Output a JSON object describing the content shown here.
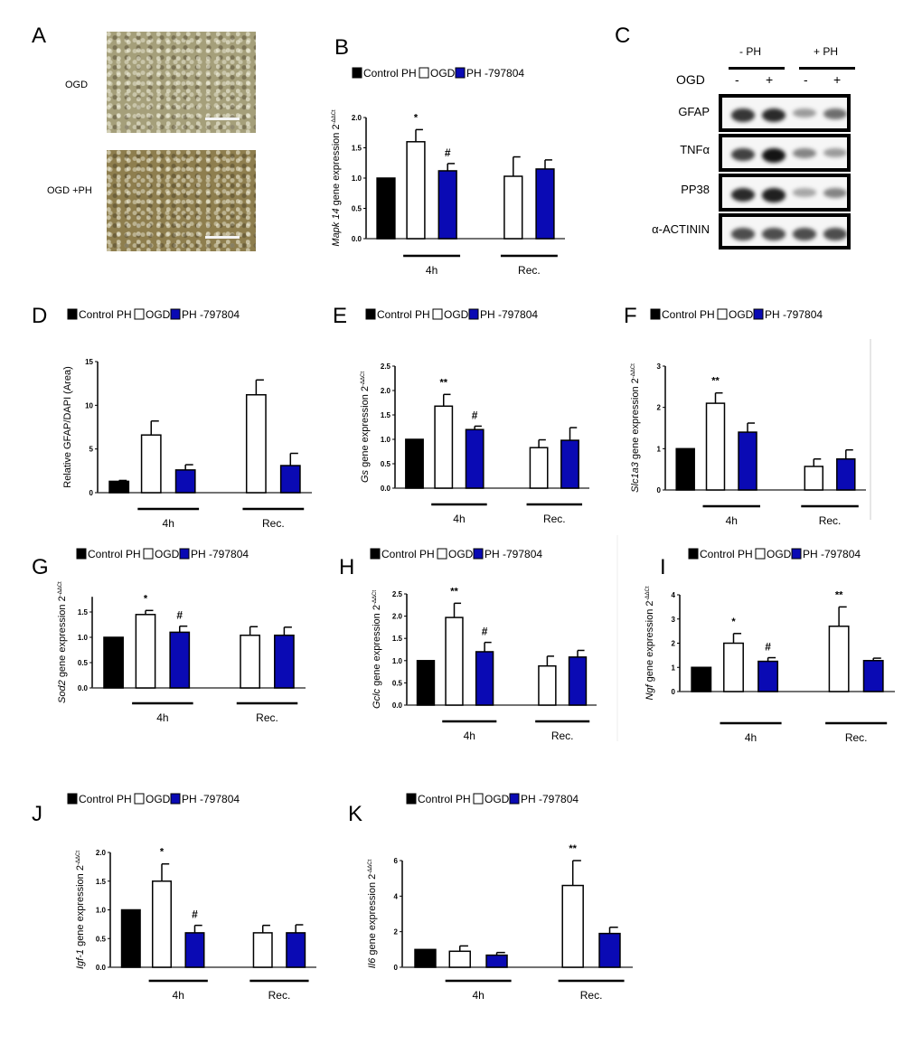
{
  "panel_a": {
    "letter": "A",
    "rows": [
      {
        "label": "OGD",
        "tone": "#a59f7a"
      },
      {
        "label": "OGD +PH",
        "tone": "#8e7e4e"
      }
    ]
  },
  "panel_c": {
    "letter": "C",
    "groups": [
      "- PH",
      "+ PH"
    ],
    "ogd_label": "OGD",
    "ogd_signs": [
      "-",
      "+",
      "-",
      "+"
    ],
    "blots": [
      {
        "label": "GFAP",
        "intensity": [
          0.85,
          0.9,
          0.4,
          0.6
        ]
      },
      {
        "label": "TNFα",
        "intensity": [
          0.8,
          1.0,
          0.5,
          0.4
        ]
      },
      {
        "label": "PP38",
        "intensity": [
          0.9,
          0.95,
          0.35,
          0.5
        ]
      },
      {
        "label": "α-ACTININ",
        "intensity": [
          0.75,
          0.75,
          0.75,
          0.75
        ]
      }
    ]
  },
  "legend": {
    "items": [
      {
        "name": "Control PH",
        "color": "#000000"
      },
      {
        "name": "OGD",
        "color": "#ffffff"
      },
      {
        "name": "PH -797804",
        "color": "#0a0ab4"
      }
    ]
  },
  "colors": {
    "control": "#000000",
    "ogd": "#ffffff",
    "ph": "#0a0ab4"
  },
  "chart_data": [
    {
      "panel": "B",
      "type": "bar",
      "ylabel_gene": "Mapk 14",
      "ylabel_rest": " gene expression 2",
      "ylabel_sup": "-ΔΔCt",
      "ylim": [
        0,
        2.0
      ],
      "yticks": [
        "0.0",
        "0.5",
        "1.0",
        "1.5",
        "2.0"
      ],
      "groups": [
        {
          "label": "",
          "bars": [
            {
              "series": "Control PH",
              "value": 1.0,
              "error": 0,
              "mark": ""
            }
          ]
        },
        {
          "label": "4h",
          "bars": [
            {
              "series": "OGD",
              "value": 1.6,
              "error": 0.2,
              "mark": "*"
            },
            {
              "series": "PH -797804",
              "value": 1.12,
              "error": 0.12,
              "mark": "#"
            }
          ]
        },
        {
          "label": "Rec.",
          "bars": [
            {
              "series": "OGD",
              "value": 1.03,
              "error": 0.32,
              "mark": ""
            },
            {
              "series": "PH -797804",
              "value": 1.15,
              "error": 0.15,
              "mark": ""
            }
          ]
        }
      ]
    },
    {
      "panel": "D",
      "type": "bar",
      "ylabel_gene": "",
      "ylabel_rest": "Relative GFAP/DAPI (Area)",
      "ylabel_sup": "",
      "ylim": [
        0,
        15
      ],
      "yticks": [
        "0",
        "5",
        "10",
        "15"
      ],
      "groups": [
        {
          "label": "",
          "bars": [
            {
              "series": "Control PH",
              "value": 1.3,
              "error": 0.1,
              "mark": ""
            }
          ]
        },
        {
          "label": "4h",
          "bars": [
            {
              "series": "OGD",
              "value": 6.6,
              "error": 1.6,
              "mark": ""
            },
            {
              "series": "PH -797804",
              "value": 2.6,
              "error": 0.6,
              "mark": ""
            }
          ]
        },
        {
          "label": "Rec.",
          "bars": [
            {
              "series": "OGD",
              "value": 11.2,
              "error": 1.7,
              "mark": ""
            },
            {
              "series": "PH -797804",
              "value": 3.1,
              "error": 1.4,
              "mark": ""
            }
          ]
        }
      ]
    },
    {
      "panel": "E",
      "type": "bar",
      "ylabel_gene": "Gs",
      "ylabel_rest": " gene expression 2",
      "ylabel_sup": "-ΔΔCt",
      "ylim": [
        0,
        2.5
      ],
      "yticks": [
        "0.0",
        "0.5",
        "1.0",
        "1.5",
        "2.0",
        "2.5"
      ],
      "groups": [
        {
          "label": "",
          "bars": [
            {
              "series": "Control PH",
              "value": 1.0,
              "error": 0,
              "mark": ""
            }
          ]
        },
        {
          "label": "4h",
          "bars": [
            {
              "series": "OGD",
              "value": 1.68,
              "error": 0.24,
              "mark": "**"
            },
            {
              "series": "PH -797804",
              "value": 1.2,
              "error": 0.07,
              "mark": "#"
            }
          ]
        },
        {
          "label": "Rec.",
          "bars": [
            {
              "series": "OGD",
              "value": 0.83,
              "error": 0.16,
              "mark": ""
            },
            {
              "series": "PH -797804",
              "value": 0.98,
              "error": 0.26,
              "mark": ""
            }
          ]
        }
      ]
    },
    {
      "panel": "F",
      "type": "bar",
      "ylabel_gene": "Slc1a3",
      "ylabel_rest": " gene expression 2",
      "ylabel_sup": "-ΔΔCt",
      "ylim": [
        0,
        3
      ],
      "yticks": [
        "0",
        "1",
        "2",
        "3"
      ],
      "groups": [
        {
          "label": "",
          "bars": [
            {
              "series": "Control PH",
              "value": 1.0,
              "error": 0,
              "mark": ""
            }
          ]
        },
        {
          "label": "4h",
          "bars": [
            {
              "series": "OGD",
              "value": 2.1,
              "error": 0.25,
              "mark": "**"
            },
            {
              "series": "PH -797804",
              "value": 1.4,
              "error": 0.22,
              "mark": ""
            }
          ]
        },
        {
          "label": "Rec.",
          "bars": [
            {
              "series": "OGD",
              "value": 0.57,
              "error": 0.18,
              "mark": ""
            },
            {
              "series": "PH -797804",
              "value": 0.75,
              "error": 0.22,
              "mark": ""
            }
          ]
        }
      ]
    },
    {
      "panel": "G",
      "type": "bar",
      "ylabel_gene": "Sod2",
      "ylabel_rest": " gene expression 2",
      "ylabel_sup": "-ΔΔCt",
      "ylim": [
        0,
        1.8
      ],
      "yticks": [
        "0.0",
        "0.5",
        "1.0",
        "1.5"
      ],
      "groups": [
        {
          "label": "",
          "bars": [
            {
              "series": "Control PH",
              "value": 1.0,
              "error": 0,
              "mark": ""
            }
          ]
        },
        {
          "label": "4h",
          "bars": [
            {
              "series": "OGD",
              "value": 1.45,
              "error": 0.08,
              "mark": "*"
            },
            {
              "series": "PH -797804",
              "value": 1.1,
              "error": 0.12,
              "mark": "#"
            }
          ]
        },
        {
          "label": "Rec.",
          "bars": [
            {
              "series": "OGD",
              "value": 1.04,
              "error": 0.17,
              "mark": ""
            },
            {
              "series": "PH -797804",
              "value": 1.04,
              "error": 0.16,
              "mark": ""
            }
          ]
        }
      ]
    },
    {
      "panel": "H",
      "type": "bar",
      "ylabel_gene": "Gclc",
      "ylabel_rest": " gene expression 2",
      "ylabel_sup": "-ΔΔCt",
      "ylim": [
        0,
        2.5
      ],
      "yticks": [
        "0.0",
        "0.5",
        "1.0",
        "1.5",
        "2.0",
        "2.5"
      ],
      "groups": [
        {
          "label": "",
          "bars": [
            {
              "series": "Control PH",
              "value": 1.0,
              "error": 0,
              "mark": ""
            }
          ]
        },
        {
          "label": "4h",
          "bars": [
            {
              "series": "OGD",
              "value": 1.97,
              "error": 0.32,
              "mark": "**"
            },
            {
              "series": "PH -797804",
              "value": 1.2,
              "error": 0.21,
              "mark": "#"
            }
          ]
        },
        {
          "label": "Rec.",
          "bars": [
            {
              "series": "OGD",
              "value": 0.88,
              "error": 0.22,
              "mark": ""
            },
            {
              "series": "PH -797804",
              "value": 1.08,
              "error": 0.15,
              "mark": ""
            }
          ]
        }
      ]
    },
    {
      "panel": "I",
      "type": "bar",
      "ylabel_gene": "Ngf",
      "ylabel_rest": " gene expression 2",
      "ylabel_sup": "-ΔΔCt",
      "ylim": [
        0,
        4
      ],
      "yticks": [
        "0",
        "1",
        "2",
        "3",
        "4"
      ],
      "groups": [
        {
          "label": "",
          "bars": [
            {
              "series": "Control PH",
              "value": 1.0,
              "error": 0,
              "mark": ""
            }
          ]
        },
        {
          "label": "4h",
          "bars": [
            {
              "series": "OGD",
              "value": 2.0,
              "error": 0.4,
              "mark": "*"
            },
            {
              "series": "PH -797804",
              "value": 1.25,
              "error": 0.15,
              "mark": "#"
            }
          ]
        },
        {
          "label": "Rec.",
          "bars": [
            {
              "series": "OGD",
              "value": 2.7,
              "error": 0.8,
              "mark": "**"
            },
            {
              "series": "PH -797804",
              "value": 1.28,
              "error": 0.1,
              "mark": ""
            }
          ]
        }
      ]
    },
    {
      "panel": "J",
      "type": "bar",
      "ylabel_gene": "Igf-1",
      "ylabel_rest": " gene expression 2",
      "ylabel_sup": "-ΔΔCt",
      "ylim": [
        0,
        2.0
      ],
      "yticks": [
        "0.0",
        "0.5",
        "1.0",
        "1.5",
        "2.0"
      ],
      "groups": [
        {
          "label": "",
          "bars": [
            {
              "series": "Control PH",
              "value": 1.0,
              "error": 0,
              "mark": ""
            }
          ]
        },
        {
          "label": "4h",
          "bars": [
            {
              "series": "OGD",
              "value": 1.5,
              "error": 0.3,
              "mark": "*"
            },
            {
              "series": "PH -797804",
              "value": 0.6,
              "error": 0.13,
              "mark": "#"
            }
          ]
        },
        {
          "label": "Rec.",
          "bars": [
            {
              "series": "OGD",
              "value": 0.6,
              "error": 0.13,
              "mark": ""
            },
            {
              "series": "PH -797804",
              "value": 0.6,
              "error": 0.14,
              "mark": ""
            }
          ]
        }
      ]
    },
    {
      "panel": "K",
      "type": "bar",
      "ylabel_gene": "Il6",
      "ylabel_rest": " gene expression 2",
      "ylabel_sup": "-ΔΔCt",
      "ylim": [
        0,
        6
      ],
      "yticks": [
        "0",
        "2",
        "4",
        "6"
      ],
      "groups": [
        {
          "label": "",
          "bars": [
            {
              "series": "Control PH",
              "value": 1.0,
              "error": 0,
              "mark": ""
            }
          ]
        },
        {
          "label": "4h",
          "bars": [
            {
              "series": "OGD",
              "value": 0.9,
              "error": 0.3,
              "mark": ""
            },
            {
              "series": "PH -797804",
              "value": 0.68,
              "error": 0.15,
              "mark": ""
            }
          ]
        },
        {
          "label": "Rec.",
          "bars": [
            {
              "series": "OGD",
              "value": 4.6,
              "error": 1.4,
              "mark": "**"
            },
            {
              "series": "PH -797804",
              "value": 1.9,
              "error": 0.35,
              "mark": ""
            }
          ]
        }
      ]
    }
  ]
}
